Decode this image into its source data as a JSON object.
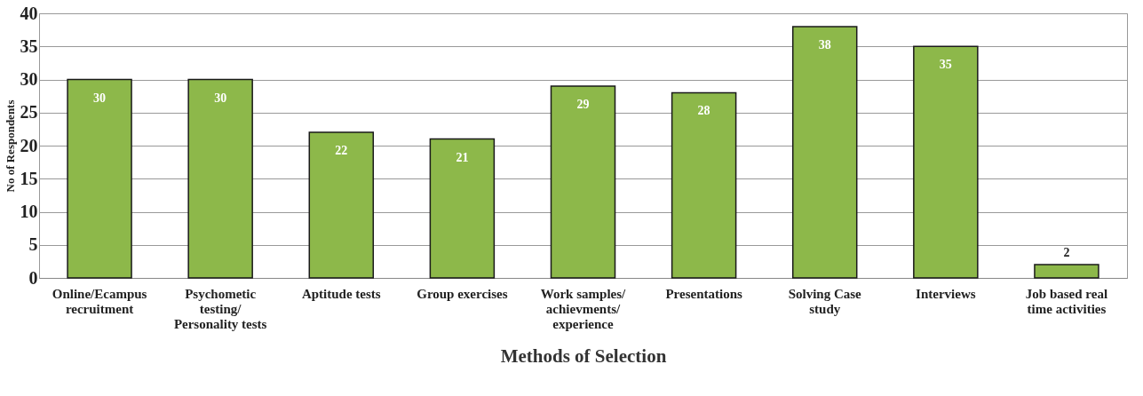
{
  "chart_data": {
    "type": "bar",
    "xlabel": "Methods of Selection",
    "ylabel": "No of Respondents",
    "categories": [
      "Online/Ecampus\nrecruitment",
      "Psychometic\ntesting/\nPersonality tests",
      "Aptitude tests",
      "Group exercises",
      "Work samples/\nachievments/\nexperience",
      "Presentations",
      "Solving Case\nstudy",
      "Interviews",
      "Job based real\ntime activities"
    ],
    "values": [
      30,
      30,
      22,
      21,
      29,
      28,
      38,
      35,
      2
    ],
    "color": "#8db84a",
    "ylim": [
      0,
      40
    ],
    "yticks": [
      0,
      5,
      10,
      15,
      20,
      25,
      30,
      35,
      40
    ],
    "grid": "y",
    "data_labels": true
  }
}
